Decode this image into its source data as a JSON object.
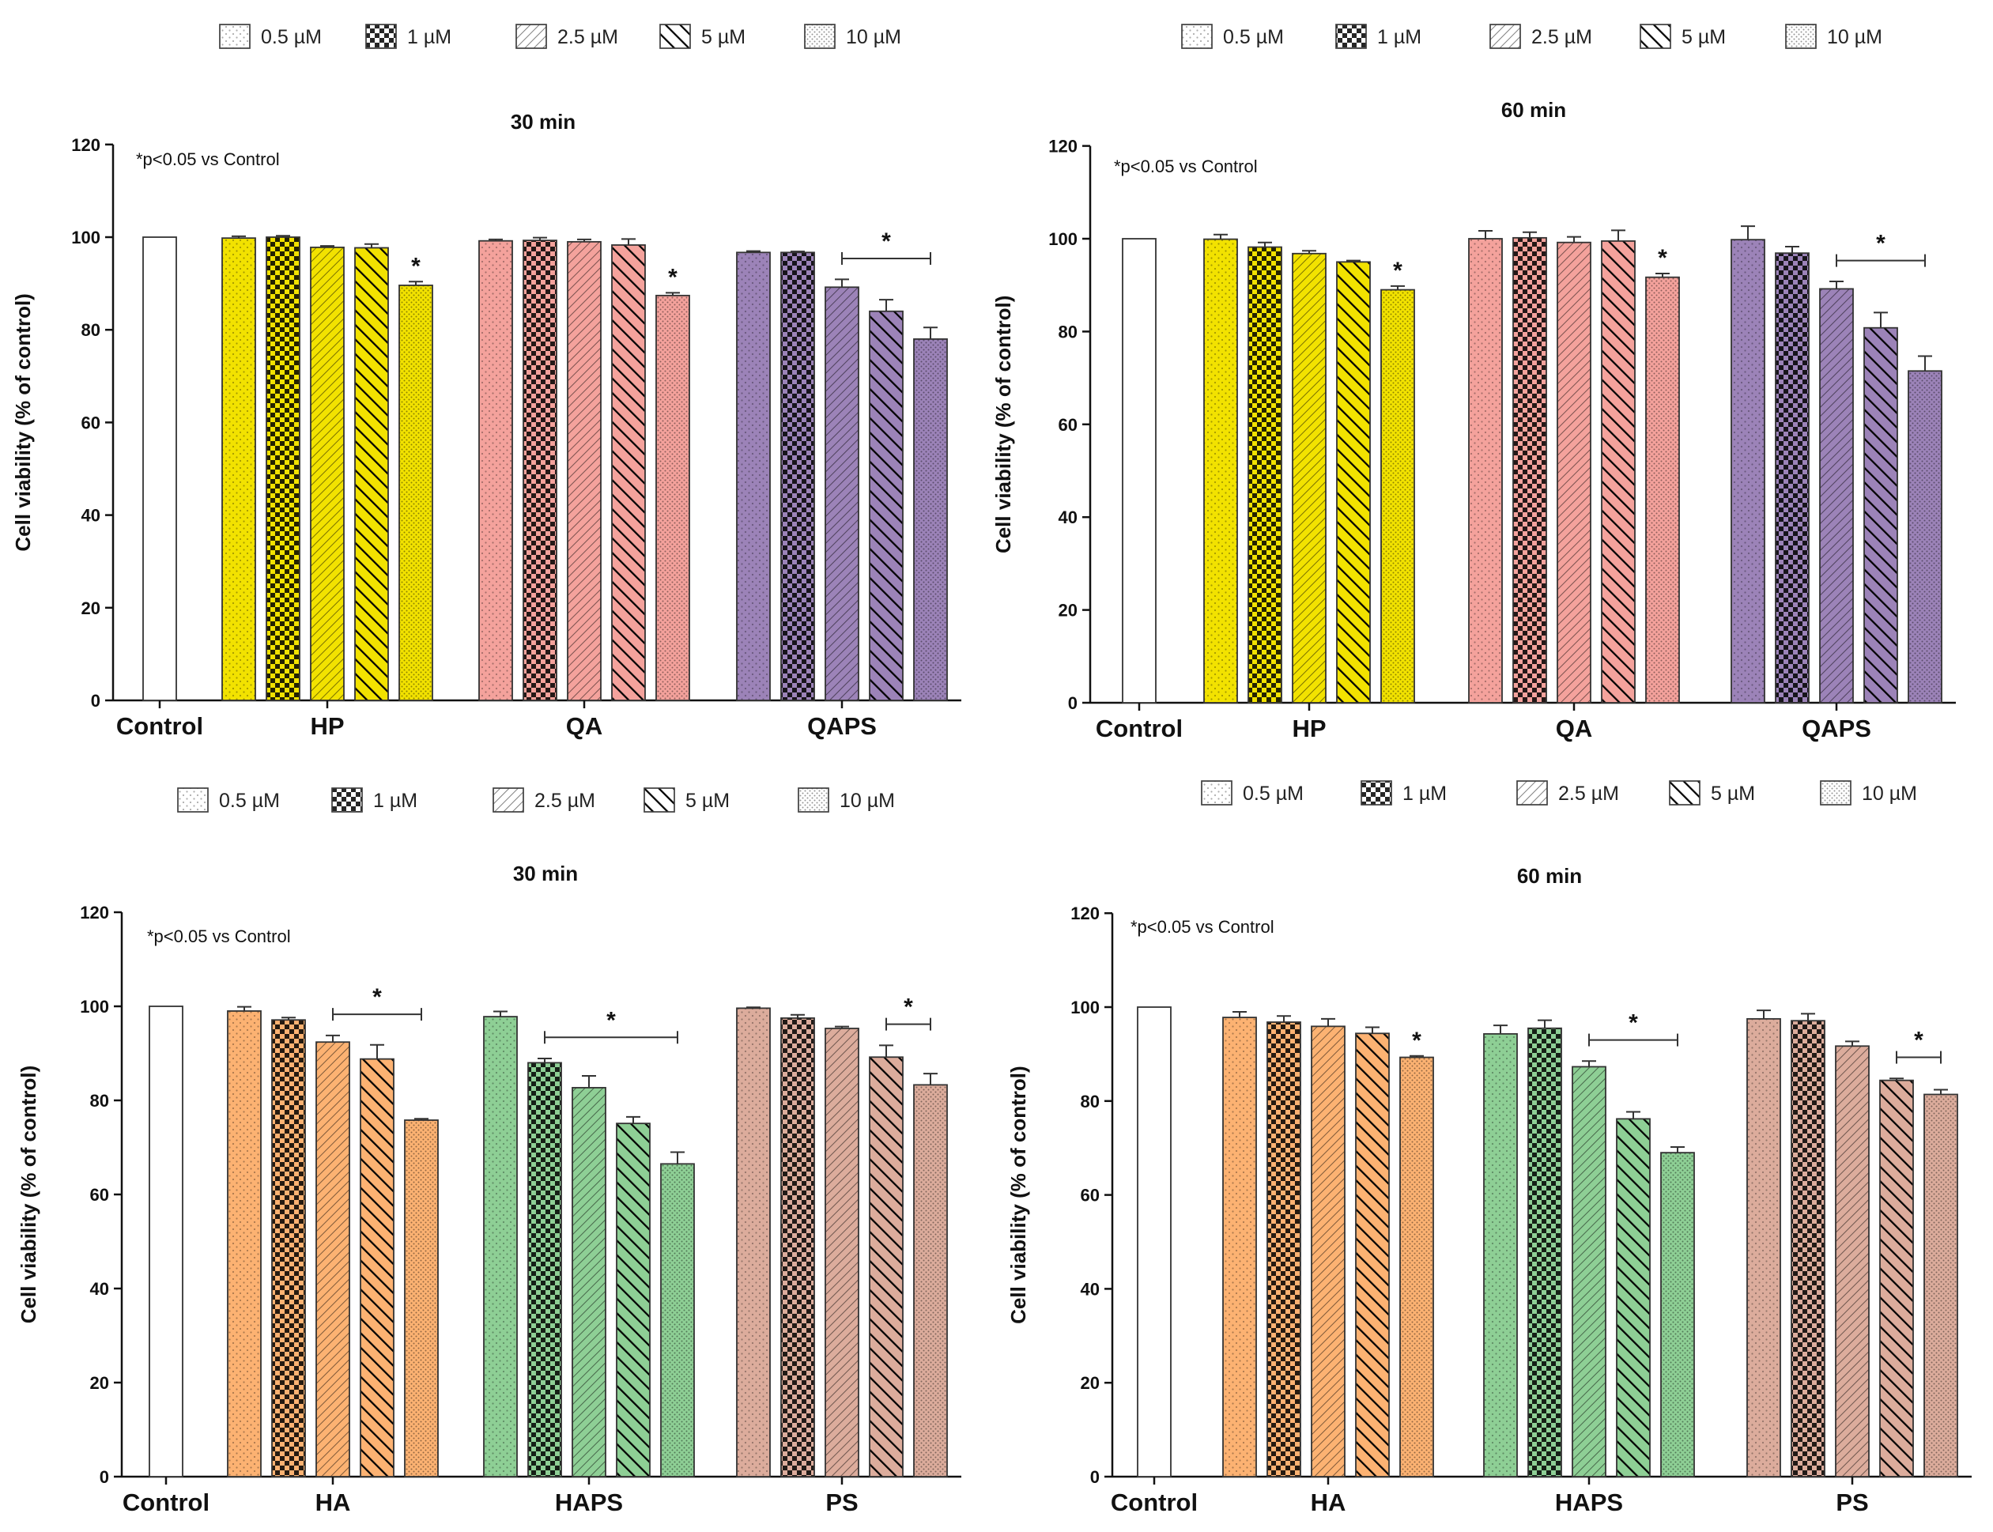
{
  "legend": {
    "entries": [
      {
        "label": "0.5 µM",
        "pattern": "dots"
      },
      {
        "label": "1 µM",
        "pattern": "checker"
      },
      {
        "label": "2.5 µM",
        "pattern": "diag-up"
      },
      {
        "label": "5 µM",
        "pattern": "diag-down"
      },
      {
        "label": "10 µM",
        "pattern": "fine-dots"
      }
    ]
  },
  "chart_data": [
    {
      "type": "bar",
      "title": "30 min",
      "ylabel": "Cell viability (% of control)",
      "ylim": [
        0,
        120
      ],
      "yticks": [
        0,
        20,
        40,
        60,
        80,
        100,
        120
      ],
      "note": "*p<0.05 vs Control",
      "control": {
        "label": "Control",
        "value": 100,
        "error": 0
      },
      "groups": [
        {
          "label": "HP",
          "color": "#f2e200",
          "values": [
            99.8,
            100.0,
            97.8,
            97.7,
            89.6
          ],
          "errors": [
            0.4,
            0.3,
            0.3,
            0.8,
            0.8
          ]
        },
        {
          "label": "QA",
          "color": "#f4a29c",
          "values": [
            99.2,
            99.3,
            99.0,
            98.3,
            87.4
          ],
          "errors": [
            0.3,
            0.6,
            0.5,
            1.3,
            0.6
          ]
        },
        {
          "label": "QAPS",
          "color": "#9c83b8",
          "values": [
            96.7,
            96.7,
            89.2,
            84.0,
            78.0
          ],
          "errors": [
            0.3,
            0.2,
            1.7,
            2.5,
            2.5
          ]
        }
      ],
      "significance": [
        {
          "group": "HP",
          "from_bar": 4,
          "to_bar": 4,
          "label": "*"
        },
        {
          "group": "QA",
          "from_bar": 4,
          "to_bar": 4,
          "label": "*"
        },
        {
          "group": "QAPS",
          "from_bar": 2,
          "to_bar": 4,
          "label": "*"
        }
      ]
    },
    {
      "type": "bar",
      "title": "60 min",
      "ylabel": "Cell viability (% of control)",
      "ylim": [
        0,
        120
      ],
      "yticks": [
        0,
        20,
        40,
        60,
        80,
        100,
        120
      ],
      "note": "*p<0.05 vs Control",
      "control": {
        "label": "Control",
        "value": 100,
        "error": 0
      },
      "groups": [
        {
          "label": "HP",
          "color": "#f2e200",
          "values": [
            99.9,
            98.2,
            96.8,
            95.0,
            89.0
          ],
          "errors": [
            1.0,
            1.0,
            0.6,
            0.3,
            0.8
          ]
        },
        {
          "label": "QA",
          "color": "#f4a29c",
          "values": [
            100.0,
            100.2,
            99.2,
            99.5,
            91.7
          ],
          "errors": [
            1.7,
            1.2,
            1.2,
            2.3,
            0.8
          ]
        },
        {
          "label": "QAPS",
          "color": "#9c83b8",
          "values": [
            99.8,
            96.9,
            89.2,
            80.8,
            71.5
          ],
          "errors": [
            2.9,
            1.4,
            1.6,
            3.3,
            3.2
          ]
        }
      ],
      "significance": [
        {
          "group": "HP",
          "from_bar": 4,
          "to_bar": 4,
          "label": "*"
        },
        {
          "group": "QA",
          "from_bar": 4,
          "to_bar": 4,
          "label": "*"
        },
        {
          "group": "QAPS",
          "from_bar": 2,
          "to_bar": 4,
          "label": "*"
        }
      ]
    },
    {
      "type": "bar",
      "title": "30 min",
      "ylabel": "Cell viability (% of control)",
      "ylim": [
        0,
        120
      ],
      "yticks": [
        0,
        20,
        40,
        60,
        80,
        100,
        120
      ],
      "note": "*p<0.05 vs Control",
      "control": {
        "label": "Control",
        "value": 100,
        "error": 0
      },
      "groups": [
        {
          "label": "HA",
          "color": "#fcb272",
          "values": [
            99.0,
            97.1,
            92.4,
            88.8,
            75.8
          ],
          "errors": [
            0.9,
            0.5,
            1.4,
            3.0,
            0.3
          ]
        },
        {
          "label": "HAPS",
          "color": "#8ecf95",
          "values": [
            97.8,
            88.0,
            82.7,
            75.1,
            66.5
          ],
          "errors": [
            1.1,
            0.9,
            2.5,
            1.4,
            2.5
          ]
        },
        {
          "label": "PS",
          "color": "#dcac9c",
          "values": [
            99.6,
            97.5,
            95.3,
            89.2,
            83.3
          ],
          "errors": [
            0.2,
            0.7,
            0.4,
            2.5,
            2.4
          ]
        }
      ],
      "significance": [
        {
          "group": "HA",
          "from_bar": 2,
          "to_bar": 4,
          "label": "*"
        },
        {
          "group": "HAPS",
          "from_bar": 1,
          "to_bar": 4,
          "label": "*"
        },
        {
          "group": "PS",
          "from_bar": 3,
          "to_bar": 4,
          "label": "*"
        }
      ]
    },
    {
      "type": "bar",
      "title": "60 min",
      "ylabel": "Cell viability (% of control)",
      "ylim": [
        0,
        120
      ],
      "yticks": [
        0,
        20,
        40,
        60,
        80,
        100,
        120
      ],
      "note": "*p<0.05 vs Control",
      "control": {
        "label": "Control",
        "value": 100,
        "error": 0
      },
      "groups": [
        {
          "label": "HA",
          "color": "#fcb272",
          "values": [
            97.8,
            96.8,
            95.9,
            94.4,
            89.3
          ],
          "errors": [
            1.2,
            1.3,
            1.6,
            1.3,
            0.3
          ]
        },
        {
          "label": "HAPS",
          "color": "#8ecf95",
          "values": [
            94.3,
            95.5,
            87.3,
            76.2,
            69.0
          ],
          "errors": [
            1.8,
            1.7,
            1.2,
            1.5,
            1.2
          ]
        },
        {
          "label": "PS",
          "color": "#dcac9c",
          "values": [
            97.5,
            97.1,
            91.7,
            84.4,
            81.4
          ],
          "errors": [
            1.8,
            1.5,
            1.0,
            0.4,
            1.0
          ]
        }
      ],
      "significance": [
        {
          "group": "HA",
          "from_bar": 4,
          "to_bar": 4,
          "label": "*"
        },
        {
          "group": "HAPS",
          "from_bar": 2,
          "to_bar": 4,
          "label": "*"
        },
        {
          "group": "PS",
          "from_bar": 3,
          "to_bar": 4,
          "label": "*"
        }
      ]
    }
  ]
}
